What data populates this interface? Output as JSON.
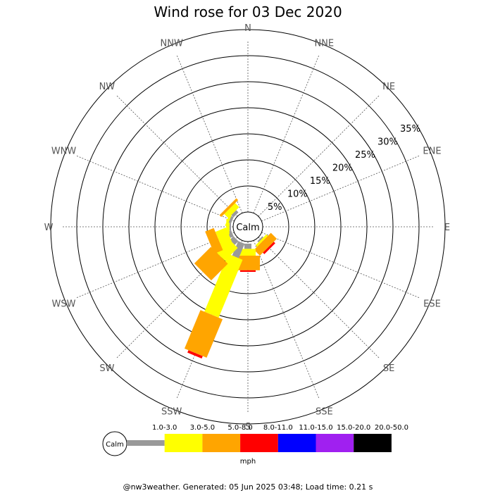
{
  "chart_data": {
    "type": "wind-rose",
    "title": "Wind rose for 03 Dec 2020",
    "calm_label": "Calm",
    "unit": "mph",
    "ring_percent": [
      5,
      10,
      15,
      20,
      25,
      30,
      35
    ],
    "ring_labels": [
      "5%",
      "10%",
      "15%",
      "20%",
      "25%",
      "30%",
      "35%"
    ],
    "directions": [
      "N",
      "NNE",
      "NE",
      "ENE",
      "E",
      "ESE",
      "SE",
      "SSE",
      "S",
      "SSW",
      "SW",
      "WSW",
      "W",
      "WNW",
      "NW",
      "NNW"
    ],
    "bins": [
      {
        "label": "1.0-3.0",
        "color": "#999999"
      },
      {
        "label": "3.0-5.0",
        "color": "#ffff00"
      },
      {
        "label": "5.0-8.0",
        "color": "#ffa500"
      },
      {
        "label": "8.0-11.0",
        "color": "#ff0000"
      },
      {
        "label": "11.0-15.0",
        "color": "#0000ff"
      },
      {
        "label": "15.0-20.0",
        "color": "#a020f0"
      },
      {
        "label": "20.0-50.0",
        "color": "#000000"
      }
    ],
    "series": [
      {
        "direction": "N",
        "values": [
          0,
          0,
          0,
          0,
          0,
          0,
          0
        ]
      },
      {
        "direction": "NNE",
        "values": [
          0,
          0,
          0,
          0,
          0,
          0,
          0
        ]
      },
      {
        "direction": "NE",
        "values": [
          0,
          0,
          0,
          0,
          0,
          0,
          0
        ]
      },
      {
        "direction": "ENE",
        "values": [
          0,
          0,
          0,
          0,
          0,
          0,
          0
        ]
      },
      {
        "direction": "E",
        "values": [
          0,
          0,
          0,
          0,
          0,
          0,
          0
        ]
      },
      {
        "direction": "ESE",
        "values": [
          0,
          0,
          0,
          0,
          0,
          0,
          0
        ]
      },
      {
        "direction": "SE",
        "values": [
          0.3,
          0.4,
          1.6,
          0.4,
          0,
          0,
          0
        ]
      },
      {
        "direction": "SSE",
        "values": [
          0,
          0,
          0,
          0,
          0,
          0,
          0
        ]
      },
      {
        "direction": "S",
        "values": [
          1.0,
          1.3,
          2.8,
          0.3,
          0,
          0,
          0
        ]
      },
      {
        "direction": "SSW",
        "values": [
          3.0,
          12.0,
          8.0,
          0.5,
          0,
          0,
          0
        ]
      },
      {
        "direction": "SW",
        "values": [
          1.0,
          3.5,
          4.5,
          0,
          0,
          0,
          0
        ]
      },
      {
        "direction": "WSW",
        "values": [
          0.7,
          2.2,
          1.8,
          0,
          0,
          0,
          0
        ]
      },
      {
        "direction": "W",
        "values": [
          0.3,
          0.6,
          0,
          0,
          0,
          0,
          0
        ]
      },
      {
        "direction": "WNW",
        "values": [
          0.5,
          0.4,
          0,
          0,
          0,
          0,
          0
        ]
      },
      {
        "direction": "NW",
        "values": [
          0.6,
          1.1,
          0.5,
          0,
          0,
          0,
          0
        ]
      },
      {
        "direction": "NNW",
        "values": [
          0,
          0,
          0,
          0,
          0,
          0,
          0
        ]
      }
    ],
    "footer": "@nw3weather. Generated: 05 Jun 2025 03:48; Load time: 0.21 s"
  }
}
